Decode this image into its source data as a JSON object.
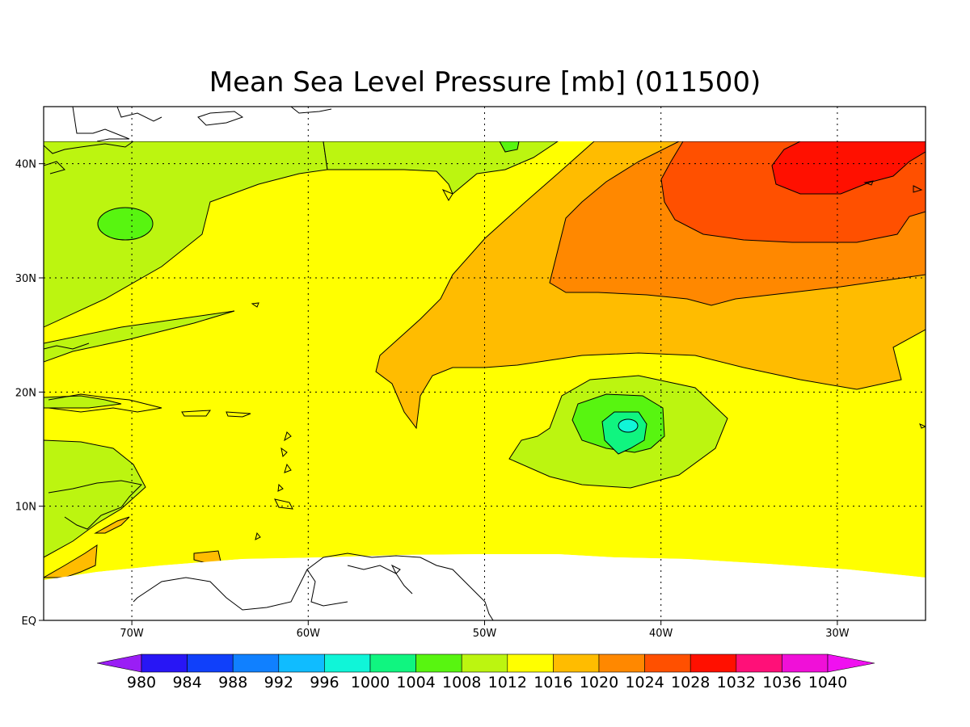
{
  "title": "Mean Sea Level Pressure [mb] (011500)",
  "map": {
    "lon_range": [
      -75,
      -25
    ],
    "lat_range": [
      0,
      45
    ],
    "x_ticks": [
      {
        "lon": -70,
        "label": "70W"
      },
      {
        "lon": -60,
        "label": "60W"
      },
      {
        "lon": -50,
        "label": "50W"
      },
      {
        "lon": -40,
        "label": "40W"
      },
      {
        "lon": -30,
        "label": "30W"
      }
    ],
    "y_ticks": [
      {
        "lat": 0,
        "label": "EQ"
      },
      {
        "lat": 10,
        "label": "10N"
      },
      {
        "lat": 20,
        "label": "20N"
      },
      {
        "lat": 30,
        "label": "30N"
      },
      {
        "lat": 40,
        "label": "40N"
      }
    ],
    "grid": "dotted",
    "features": [
      {
        "name": "low-pressure-center",
        "lon": -42,
        "lat": 17,
        "value_range": "996-1000"
      },
      {
        "name": "high-pressure-center",
        "lon": -30,
        "lat": 40,
        "value_range": "1028-1032"
      }
    ]
  },
  "colorbar": {
    "labels": [
      "980",
      "984",
      "988",
      "992",
      "996",
      "1000",
      "1004",
      "1008",
      "1012",
      "1016",
      "1020",
      "1024",
      "1028",
      "1032",
      "1036",
      "1040"
    ],
    "colors": [
      "#9a1ef5",
      "#2816f5",
      "#1040fa",
      "#1080ff",
      "#10bcff",
      "#10f5d8",
      "#10f580",
      "#58f510",
      "#bcf510",
      "#ffff00",
      "#ffbc00",
      "#ff8800",
      "#ff5000",
      "#ff1000",
      "#ff1078",
      "#f010d8",
      "#f010f0"
    ]
  }
}
